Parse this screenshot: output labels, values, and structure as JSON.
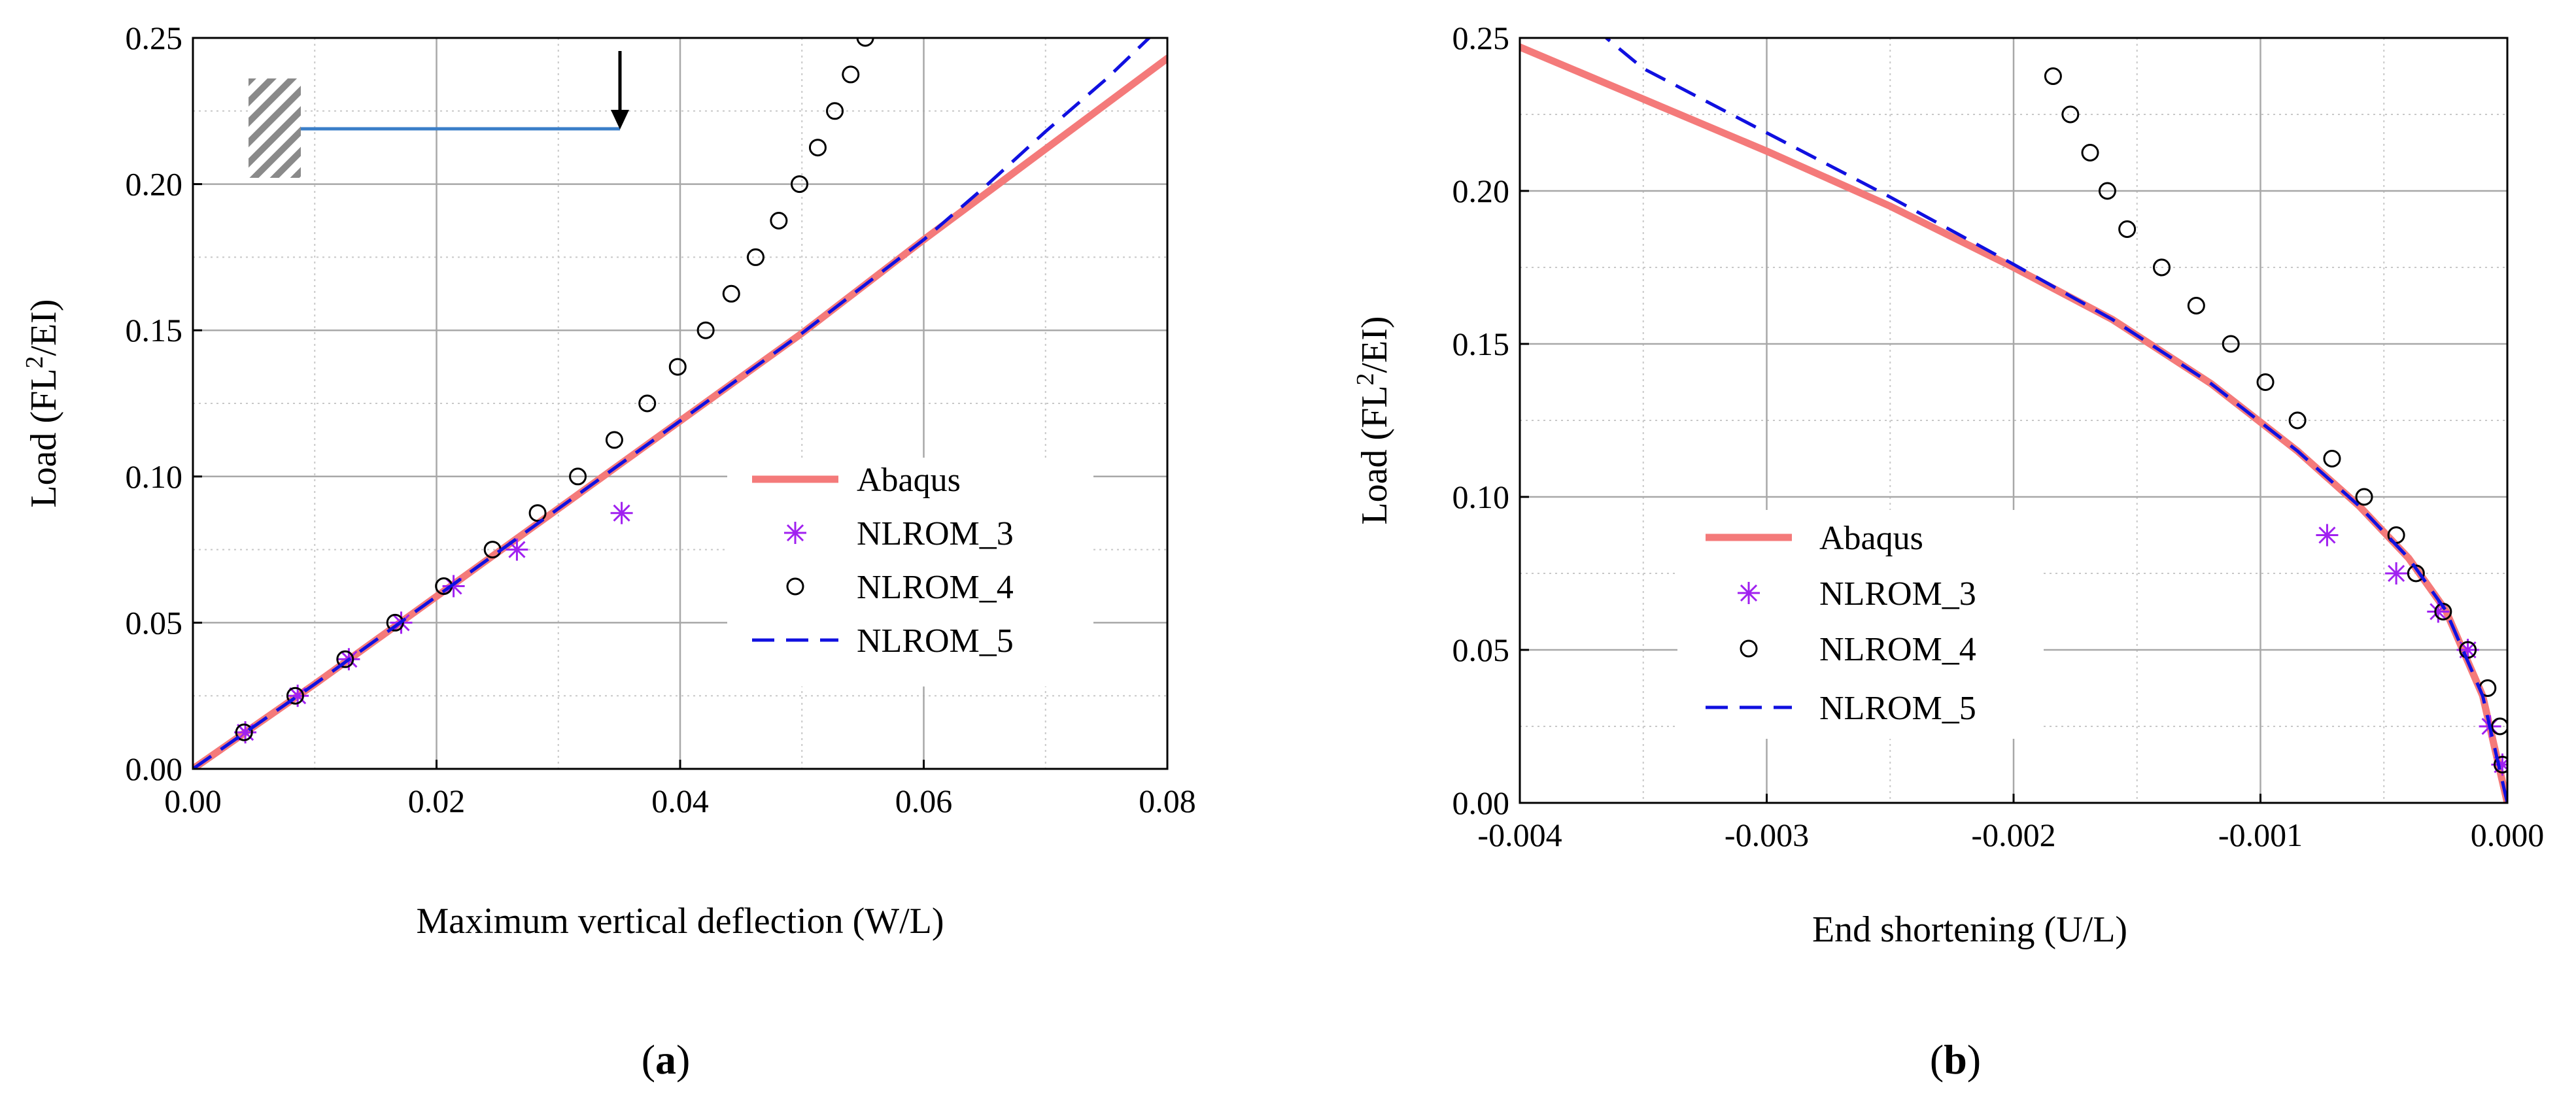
{
  "chart_data": [
    {
      "panel_label": "(a)",
      "panel_letter": "a",
      "type": "line",
      "title": "",
      "xlabel": "Maximum vertical deflection (W/L)",
      "ylabel_prefix": "Load (FL",
      "ylabel_sup": "2",
      "ylabel_suffix": "/EI)",
      "xlim": [
        0.0,
        0.08
      ],
      "ylim": [
        0.0,
        0.25
      ],
      "xticks": [
        0.0,
        0.02,
        0.04,
        0.06,
        0.08
      ],
      "xtick_labels": [
        "0.00",
        "0.02",
        "0.04",
        "0.06",
        "0.08"
      ],
      "yticks": [
        0.0,
        0.05,
        0.1,
        0.15,
        0.2,
        0.25
      ],
      "ytick_labels": [
        "0.00",
        "0.05",
        "0.10",
        "0.15",
        "0.20",
        "0.25"
      ],
      "grid": true,
      "legend_position": "center-right",
      "inset": "cantilever-beam-with-tip-load",
      "series": [
        {
          "name": "Abaqus",
          "style": "solid",
          "color": "#f47a7a",
          "x": [
            0.0,
            0.01,
            0.02,
            0.03,
            0.04,
            0.05,
            0.06,
            0.07,
            0.08
          ],
          "y": [
            0.0,
            0.029,
            0.059,
            0.089,
            0.119,
            0.149,
            0.181,
            0.212,
            0.243
          ]
        },
        {
          "name": "NLROM_3",
          "style": "asterisk",
          "color": "#a020f0",
          "x": [
            0.0043,
            0.0086,
            0.0128,
            0.0171,
            0.0214,
            0.0266,
            0.0352
          ],
          "y": [
            0.0125,
            0.025,
            0.0375,
            0.05,
            0.0625,
            0.075,
            0.0875
          ]
        },
        {
          "name": "NLROM_4",
          "style": "circle",
          "color": "#000000",
          "x": [
            0.0042,
            0.0084,
            0.0125,
            0.0166,
            0.0206,
            0.0246,
            0.0283,
            0.0316,
            0.0346,
            0.0373,
            0.0398,
            0.0421,
            0.0442,
            0.0462,
            0.0481,
            0.0498,
            0.0513,
            0.0527,
            0.054,
            0.0552
          ],
          "y": [
            0.0125,
            0.025,
            0.0375,
            0.05,
            0.0625,
            0.075,
            0.0875,
            0.1,
            0.1125,
            0.125,
            0.1375,
            0.15,
            0.1625,
            0.175,
            0.1875,
            0.2,
            0.2125,
            0.225,
            0.2375,
            0.25
          ]
        },
        {
          "name": "NLROM_5",
          "style": "dashed",
          "color": "#1010e0",
          "x": [
            0.0,
            0.01,
            0.02,
            0.03,
            0.04,
            0.05,
            0.06,
            0.065,
            0.07,
            0.075,
            0.08
          ],
          "y": [
            0.0,
            0.029,
            0.059,
            0.089,
            0.119,
            0.149,
            0.181,
            0.199,
            0.218,
            0.236,
            0.256
          ]
        }
      ]
    },
    {
      "panel_label": "(b)",
      "panel_letter": "b",
      "type": "line",
      "title": "",
      "xlabel": "End shortening (U/L)",
      "ylabel_prefix": "Load (FL",
      "ylabel_sup": "2",
      "ylabel_suffix": "/EI)",
      "xlim": [
        -0.004,
        0.0
      ],
      "ylim": [
        0.0,
        0.25
      ],
      "xticks": [
        -0.004,
        -0.003,
        -0.002,
        -0.001,
        0.0
      ],
      "xtick_labels": [
        "-0.004",
        "-0.003",
        "-0.002",
        "-0.001",
        "0.000"
      ],
      "yticks": [
        0.0,
        0.05,
        0.1,
        0.15,
        0.2,
        0.25
      ],
      "ytick_labels": [
        "0.00",
        "0.05",
        "0.10",
        "0.15",
        "0.20",
        "0.25"
      ],
      "grid": true,
      "legend_position": "bottom-left",
      "series": [
        {
          "name": "Abaqus",
          "style": "solid",
          "color": "#f47a7a",
          "x": [
            0.0,
            -0.0001,
            -0.00025,
            -0.0004,
            -0.0006,
            -0.00085,
            -0.0012,
            -0.0016,
            -0.002,
            -0.0025,
            -0.003,
            -0.0035,
            -0.004
          ],
          "y": [
            0.0,
            0.035,
            0.063,
            0.08,
            0.097,
            0.115,
            0.137,
            0.158,
            0.175,
            0.195,
            0.213,
            0.23,
            0.247
          ]
        },
        {
          "name": "NLROM_3",
          "style": "asterisk",
          "color": "#a020f0",
          "x": [
            -2e-05,
            -7e-05,
            -0.00016,
            -0.00028,
            -0.00045,
            -0.00073
          ],
          "y": [
            0.0125,
            0.025,
            0.05,
            0.0625,
            0.075,
            0.0875
          ]
        },
        {
          "name": "NLROM_4",
          "style": "circle",
          "color": "#000000",
          "x": [
            -2e-05,
            -3e-05,
            -8e-05,
            -0.00016,
            -0.00026,
            -0.00037,
            -0.00045,
            -0.00058,
            -0.00071,
            -0.00085,
            -0.00098,
            -0.00112,
            -0.00126,
            -0.0014,
            -0.00154,
            -0.00162,
            -0.00169,
            -0.00177,
            -0.00184
          ],
          "y": [
            0.0125,
            0.025,
            0.0375,
            0.05,
            0.0625,
            0.075,
            0.0875,
            0.1,
            0.1125,
            0.125,
            0.1375,
            0.15,
            0.1625,
            0.175,
            0.1875,
            0.2,
            0.2125,
            0.225,
            0.2375
          ]
        },
        {
          "name": "NLROM_5",
          "style": "dashed",
          "color": "#1010e0",
          "x": [
            0.0,
            -0.0001,
            -0.00025,
            -0.0004,
            -0.0006,
            -0.00085,
            -0.0012,
            -0.0016,
            -0.002,
            -0.0025,
            -0.003,
            -0.0035,
            -0.00365
          ],
          "y": [
            0.0,
            0.035,
            0.063,
            0.08,
            0.097,
            0.115,
            0.137,
            0.158,
            0.176,
            0.198,
            0.219,
            0.24,
            0.25
          ]
        }
      ]
    }
  ]
}
